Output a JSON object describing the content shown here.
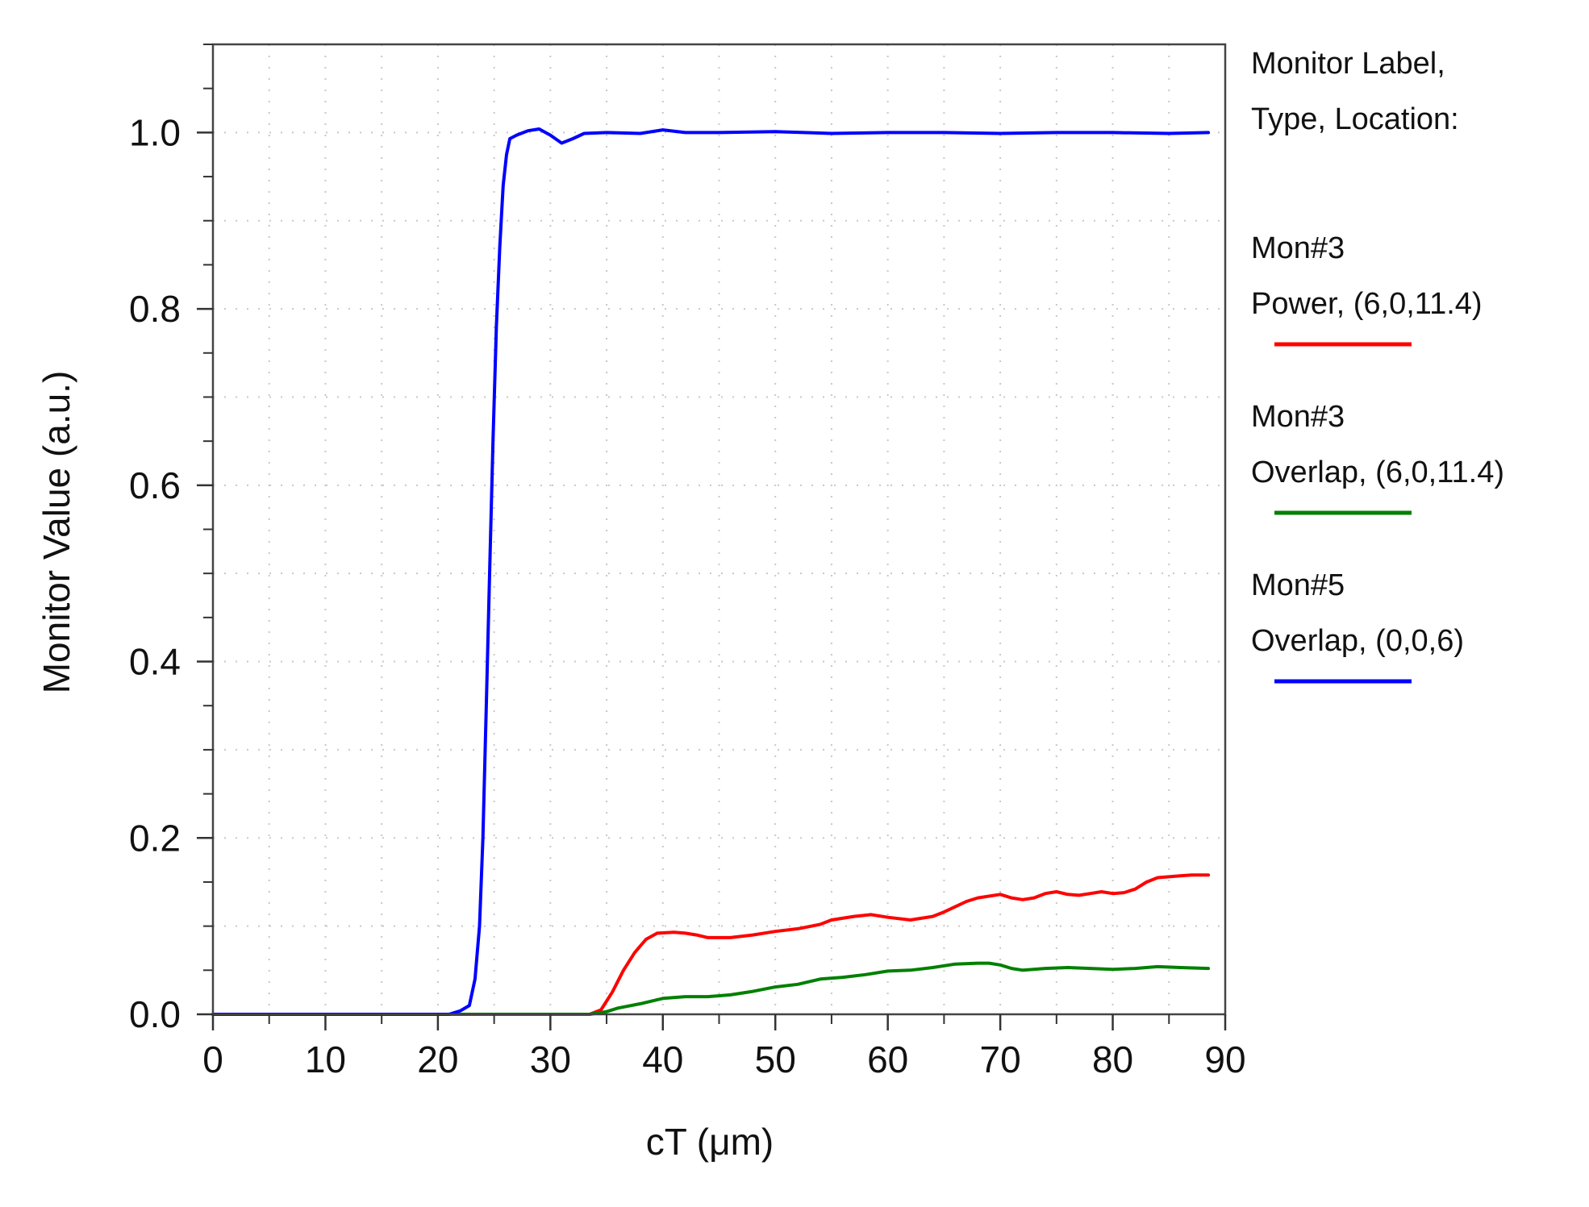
{
  "chart_data": {
    "type": "line",
    "title": "",
    "xlabel": "cT (μm)",
    "ylabel": "Monitor Value (a.u.)",
    "xlim": [
      0,
      90
    ],
    "ylim": [
      0,
      1.1
    ],
    "x_ticks": [
      0,
      10,
      20,
      30,
      40,
      50,
      60,
      70,
      80,
      90
    ],
    "x_tick_labels": [
      "0",
      "10",
      "20",
      "30",
      "40",
      "50",
      "60",
      "70",
      "80",
      "90"
    ],
    "y_ticks": [
      0,
      0.2,
      0.4,
      0.6,
      0.8,
      1.0
    ],
    "y_tick_labels": [
      "0.0",
      "0.2",
      "0.4",
      "0.6",
      "0.8",
      "1.0"
    ],
    "x_minor_step": 5,
    "y_minor_step": 0.05,
    "grid": true,
    "grid_style": "dotted",
    "legend_position": "right",
    "legend": {
      "header_line1": "Monitor Label,",
      "header_line2": "Type, Location:",
      "entries": [
        {
          "name": "Mon#3",
          "detail": "Power, (6,0,11.4)",
          "color": "#ff0000"
        },
        {
          "name": "Mon#3",
          "detail": "Overlap, (6,0,11.4)",
          "color": "#008000"
        },
        {
          "name": "Mon#5",
          "detail": "Overlap, (0,0,6)",
          "color": "#0000ff"
        }
      ]
    },
    "series": [
      {
        "name": "Mon#3 Power, (6,0,11.4)",
        "color": "#ff0000",
        "points": [
          [
            0,
            0
          ],
          [
            33.5,
            0
          ],
          [
            34.5,
            0.005
          ],
          [
            35.5,
            0.025
          ],
          [
            36.5,
            0.05
          ],
          [
            37.5,
            0.07
          ],
          [
            38.5,
            0.085
          ],
          [
            39.5,
            0.092
          ],
          [
            41,
            0.093
          ],
          [
            42,
            0.092
          ],
          [
            43,
            0.09
          ],
          [
            44,
            0.087
          ],
          [
            46,
            0.087
          ],
          [
            48,
            0.09
          ],
          [
            50,
            0.094
          ],
          [
            52,
            0.097
          ],
          [
            54,
            0.102
          ],
          [
            55,
            0.107
          ],
          [
            57,
            0.111
          ],
          [
            58.5,
            0.113
          ],
          [
            60,
            0.11
          ],
          [
            62,
            0.107
          ],
          [
            64,
            0.111
          ],
          [
            65,
            0.116
          ],
          [
            66,
            0.122
          ],
          [
            67,
            0.128
          ],
          [
            68,
            0.132
          ],
          [
            70,
            0.136
          ],
          [
            71,
            0.132
          ],
          [
            72,
            0.13
          ],
          [
            73,
            0.132
          ],
          [
            74,
            0.137
          ],
          [
            75,
            0.139
          ],
          [
            76,
            0.136
          ],
          [
            77,
            0.135
          ],
          [
            78,
            0.137
          ],
          [
            79,
            0.139
          ],
          [
            80,
            0.137
          ],
          [
            81,
            0.138
          ],
          [
            82,
            0.142
          ],
          [
            83,
            0.15
          ],
          [
            84,
            0.155
          ],
          [
            85,
            0.156
          ],
          [
            86,
            0.157
          ],
          [
            87,
            0.158
          ],
          [
            88.5,
            0.158
          ]
        ]
      },
      {
        "name": "Mon#3 Overlap, (6,0,11.4)",
        "color": "#008000",
        "points": [
          [
            0,
            0
          ],
          [
            33.5,
            0
          ],
          [
            35,
            0.003
          ],
          [
            36,
            0.007
          ],
          [
            38,
            0.012
          ],
          [
            40,
            0.018
          ],
          [
            42,
            0.02
          ],
          [
            44,
            0.02
          ],
          [
            46,
            0.022
          ],
          [
            48,
            0.026
          ],
          [
            50,
            0.031
          ],
          [
            52,
            0.034
          ],
          [
            54,
            0.04
          ],
          [
            56,
            0.042
          ],
          [
            58,
            0.045
          ],
          [
            60,
            0.049
          ],
          [
            62,
            0.05
          ],
          [
            64,
            0.053
          ],
          [
            66,
            0.057
          ],
          [
            68,
            0.058
          ],
          [
            69,
            0.058
          ],
          [
            70,
            0.056
          ],
          [
            71,
            0.052
          ],
          [
            72,
            0.05
          ],
          [
            74,
            0.052
          ],
          [
            76,
            0.053
          ],
          [
            78,
            0.052
          ],
          [
            80,
            0.051
          ],
          [
            82,
            0.052
          ],
          [
            84,
            0.054
          ],
          [
            86,
            0.053
          ],
          [
            88.5,
            0.052
          ]
        ]
      },
      {
        "name": "Mon#5 Overlap, (0,0,6)",
        "color": "#0000ff",
        "points": [
          [
            0,
            0
          ],
          [
            21,
            0
          ],
          [
            22,
            0.004
          ],
          [
            22.8,
            0.01
          ],
          [
            23.3,
            0.04
          ],
          [
            23.7,
            0.1
          ],
          [
            24,
            0.2
          ],
          [
            24.3,
            0.35
          ],
          [
            24.6,
            0.5
          ],
          [
            24.9,
            0.65
          ],
          [
            25.2,
            0.78
          ],
          [
            25.5,
            0.87
          ],
          [
            25.8,
            0.94
          ],
          [
            26.1,
            0.975
          ],
          [
            26.4,
            0.993
          ],
          [
            27,
            0.997
          ],
          [
            28,
            1.002
          ],
          [
            29,
            1.004
          ],
          [
            30,
            0.997
          ],
          [
            31,
            0.988
          ],
          [
            32,
            0.993
          ],
          [
            33,
            0.999
          ],
          [
            35,
            1.0
          ],
          [
            38,
            0.999
          ],
          [
            40,
            1.003
          ],
          [
            42,
            1.0
          ],
          [
            45,
            1.0
          ],
          [
            50,
            1.001
          ],
          [
            55,
            0.999
          ],
          [
            60,
            1.0
          ],
          [
            65,
            1.0
          ],
          [
            70,
            0.999
          ],
          [
            75,
            1.0
          ],
          [
            80,
            1.0
          ],
          [
            85,
            0.999
          ],
          [
            88.5,
            1.0
          ]
        ]
      }
    ]
  }
}
